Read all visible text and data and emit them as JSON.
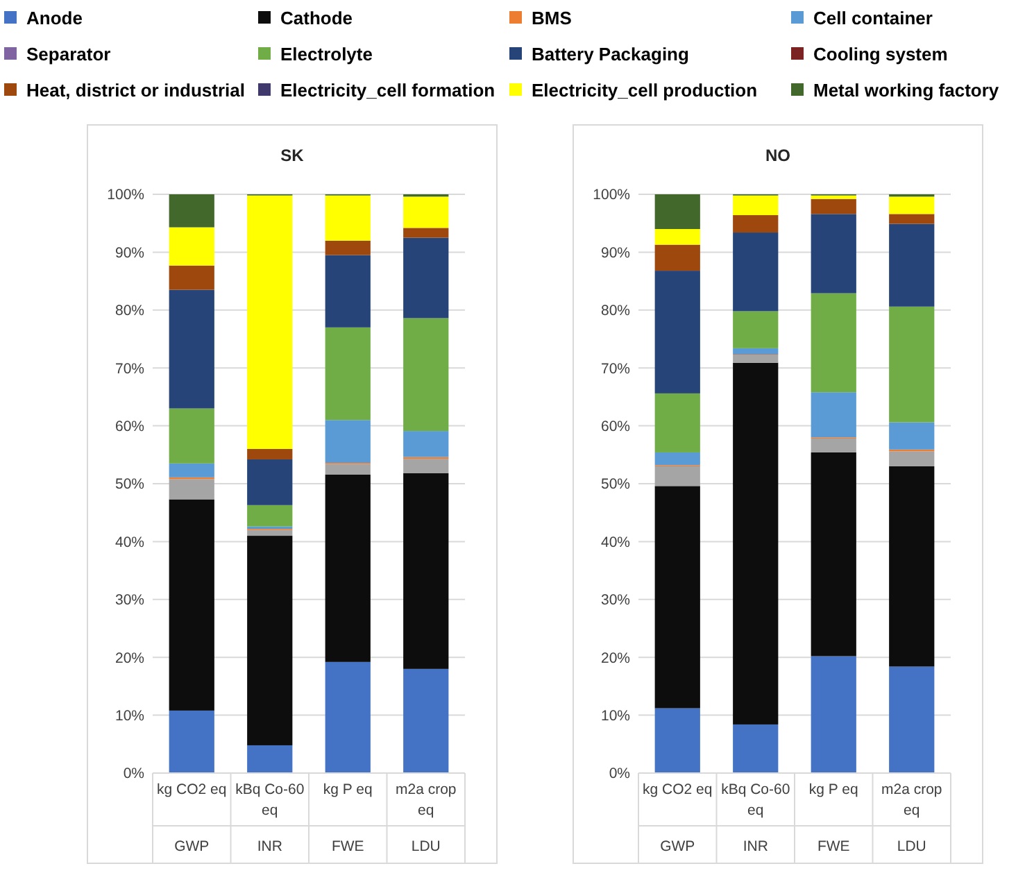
{
  "chart_data": [
    {
      "type": "bar",
      "title": "SK",
      "stacked": true,
      "grid": "y",
      "legend": "top",
      "categories": [
        "kg CO2 eq\nGWP",
        "kBq Co-60 eq\nINR",
        "kg P eq\nFWE",
        "m2a crop eq\nLDU"
      ],
      "ylim": [
        0,
        100
      ],
      "yticks": [
        {
          "value": 0,
          "label": "0%"
        },
        {
          "value": 10,
          "label": "10%"
        },
        {
          "value": 20,
          "label": "20%"
        },
        {
          "value": 30,
          "label": "30%"
        },
        {
          "value": 40,
          "label": "40%"
        },
        {
          "value": 50,
          "label": "50%"
        },
        {
          "value": 60,
          "label": "60%"
        },
        {
          "value": 70,
          "label": "70%"
        },
        {
          "value": 80,
          "label": "80%"
        },
        {
          "value": 90,
          "label": "90%"
        },
        {
          "value": 100,
          "label": "100%"
        }
      ],
      "series": [
        {
          "name": "Anode",
          "color": "#4472c4",
          "values": [
            10.8,
            4.8,
            19.2,
            18
          ]
        },
        {
          "name": "Cathode",
          "color": "#0d0d0d",
          "values": [
            36.5,
            36.2,
            32.4,
            33.8
          ]
        },
        {
          "color": "#a5a5a5",
          "values": [
            3.5,
            1.0,
            1.8,
            2.5
          ]
        },
        {
          "name": "BMS",
          "color": "#ed7d31",
          "values": [
            0.3,
            0.2,
            0.2,
            0.3
          ]
        },
        {
          "name": "Cell container",
          "color": "#5b9bd5",
          "values": [
            2.4,
            0.4,
            7.4,
            4.5
          ]
        },
        {
          "name": "Separator",
          "color": "#8064a2",
          "values": [
            0,
            0,
            0,
            0
          ]
        },
        {
          "name": "Electrolyte",
          "color": "#70ad47",
          "values": [
            9.5,
            3.7,
            16,
            19.5
          ]
        },
        {
          "name": "Battery Packaging",
          "color": "#264478",
          "values": [
            20.5,
            7.9,
            12.5,
            13.9
          ]
        },
        {
          "name": "Cooling system",
          "color": "#7b2323",
          "values": [
            0,
            0,
            0,
            0
          ]
        },
        {
          "name": "Heat, district or industrial",
          "color": "#9e480e",
          "values": [
            4.2,
            1.8,
            2.5,
            1.7
          ]
        },
        {
          "name": "Electricity_cell formation",
          "color": "#3f3a6b",
          "values": [
            0,
            0,
            0,
            0
          ]
        },
        {
          "name": "Electricity_cell production",
          "color": "#ffff00",
          "values": [
            6.6,
            43.8,
            7.8,
            5.4
          ]
        },
        {
          "name": "Metal working factory",
          "color": "#43682b",
          "values": [
            5.7,
            0.2,
            0.2,
            0.4
          ]
        }
      ]
    },
    {
      "type": "bar",
      "title": "NO",
      "stacked": true,
      "grid": "y",
      "categories": [
        "kg CO2 eq\nGWP",
        "kBq Co-60 eq\nINR",
        "kg P eq\nFWE",
        "m2a crop eq\nLDU"
      ],
      "ylim": [
        0,
        100
      ],
      "yticks": [
        {
          "value": 0,
          "label": "0%"
        },
        {
          "value": 10,
          "label": "10%"
        },
        {
          "value": 20,
          "label": "20%"
        },
        {
          "value": 30,
          "label": "30%"
        },
        {
          "value": 40,
          "label": "40%"
        },
        {
          "value": 50,
          "label": "50%"
        },
        {
          "value": 60,
          "label": "60%"
        },
        {
          "value": 70,
          "label": "70%"
        },
        {
          "value": 80,
          "label": "80%"
        },
        {
          "value": 90,
          "label": "90%"
        },
        {
          "value": 100,
          "label": "100%"
        }
      ],
      "series": [
        {
          "color": "#4472c4",
          "values": [
            11.2,
            8.4,
            20.2,
            18.4
          ]
        },
        {
          "color": "#0d0d0d",
          "values": [
            38.4,
            62.5,
            35.2,
            34.6
          ]
        },
        {
          "color": "#a5a5a5",
          "values": [
            3.4,
            1.3,
            2.4,
            2.6
          ]
        },
        {
          "color": "#ed7d31",
          "values": [
            0.2,
            0.1,
            0.2,
            0.3
          ]
        },
        {
          "color": "#5b9bd5",
          "values": [
            2.2,
            1.1,
            7.8,
            4.7
          ]
        },
        {
          "color": "#8064a2",
          "values": [
            0,
            0,
            0,
            0
          ]
        },
        {
          "color": "#70ad47",
          "values": [
            10.2,
            6.4,
            17.1,
            20
          ]
        },
        {
          "color": "#264478",
          "values": [
            21.2,
            13.6,
            13.7,
            14.3
          ]
        },
        {
          "color": "#7b2323",
          "values": [
            0,
            0,
            0,
            0
          ]
        },
        {
          "color": "#9e480e",
          "values": [
            4.5,
            3.0,
            2.6,
            1.7
          ]
        },
        {
          "color": "#3f3a6b",
          "values": [
            0,
            0,
            0,
            0
          ]
        },
        {
          "color": "#ffff00",
          "values": [
            2.7,
            3.4,
            0.6,
            3.0
          ]
        },
        {
          "color": "#43682b",
          "values": [
            6.0,
            0.2,
            0.2,
            0.4
          ]
        }
      ]
    }
  ]
}
